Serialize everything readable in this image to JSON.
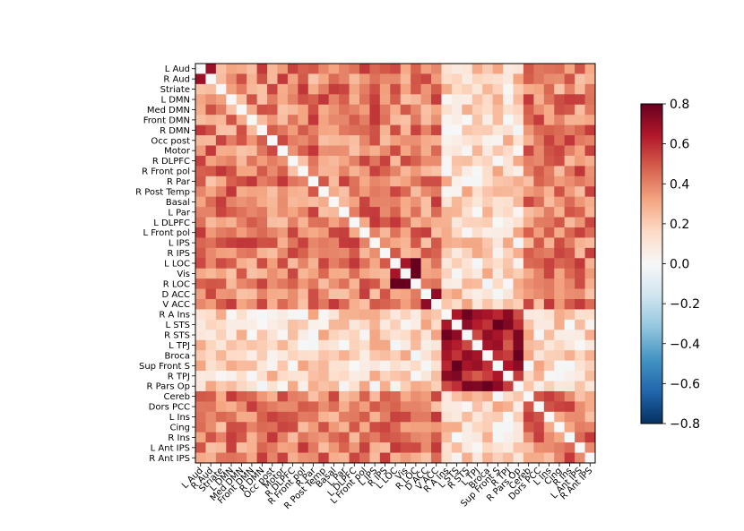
{
  "chart_data": {
    "type": "heatmap",
    "title": "",
    "labels": [
      "L Aud",
      "R Aud",
      "Striate",
      "L DMN",
      "Med DMN",
      "Front DMN",
      "R DMN",
      "Occ post",
      "Motor",
      "R DLPFC",
      "R Front pol",
      "R Par",
      "R Post Temp",
      "Basal",
      "L Par",
      "L DLPFC",
      "L Front pol",
      "L IPS",
      "R IPS",
      "L LOC",
      "Vis",
      "R LOC",
      "D ACC",
      "V ACC",
      "R A Ins",
      "L STS",
      "R STS",
      "L TPJ",
      "Broca",
      "Sup Front S",
      "R TPJ",
      "R Pars Op",
      "Cereb",
      "Dors PCC",
      "L Ins",
      "Cing",
      "R Ins",
      "L Ant IPS",
      "R Ant IPS"
    ],
    "x_tick_labels": [
      "L Aud",
      "R Aud",
      "Striate",
      "L DMN",
      "Med DMN",
      "Front DMN",
      "R DMN",
      "Occ post",
      "Motor",
      "R DLPFC",
      "R Front pol",
      "R Par",
      "R Post Temp",
      "Basal",
      "L Par",
      "L DLPFC",
      "L Front pol",
      "L IPS",
      "R IPS",
      "L LOC",
      "Vis",
      "R LOC",
      "D ACC",
      "V ACC",
      "R A Ins",
      "L STS",
      "R STS",
      "L TPJ",
      "Broca",
      "Sup Front S",
      "R TPJ",
      "R Pars Op",
      "Cereb",
      "Dors PCC",
      "L Ins",
      "Cing",
      "R Ins",
      "L Ant IPS",
      "R Ant IPS"
    ],
    "colorbar": {
      "vmin": -0.8,
      "vmax": 0.8,
      "ticks": [
        "0.8",
        "0.6",
        "0.4",
        "0.2",
        "0.0",
        "−0.2",
        "−0.4",
        "−0.6",
        "−0.8"
      ],
      "colormap": "RdBu_r"
    },
    "diagonal_value": 0.0,
    "default_offdiag": 0.4,
    "group_offsets": [
      {
        "labels": [
          "R A Ins",
          "L STS",
          "R STS",
          "L TPJ",
          "Broca",
          "Sup Front S",
          "R TPJ",
          "R Pars Op"
        ],
        "within": 0.65,
        "between": 0.15
      },
      {
        "labels": [
          "L LOC",
          "Vis",
          "R LOC"
        ],
        "within": 0.78,
        "between": 0.45
      },
      {
        "labels": [
          "D ACC",
          "V ACC"
        ],
        "within": 0.8,
        "between": 0.5
      },
      {
        "labels": [
          "L Aud",
          "R Aud"
        ],
        "within": 0.8,
        "between": 0.5
      }
    ],
    "row_tones": {
      "R A Ins": 0.05,
      "L STS": 0.08,
      "R TPJ": 0.05
    }
  }
}
